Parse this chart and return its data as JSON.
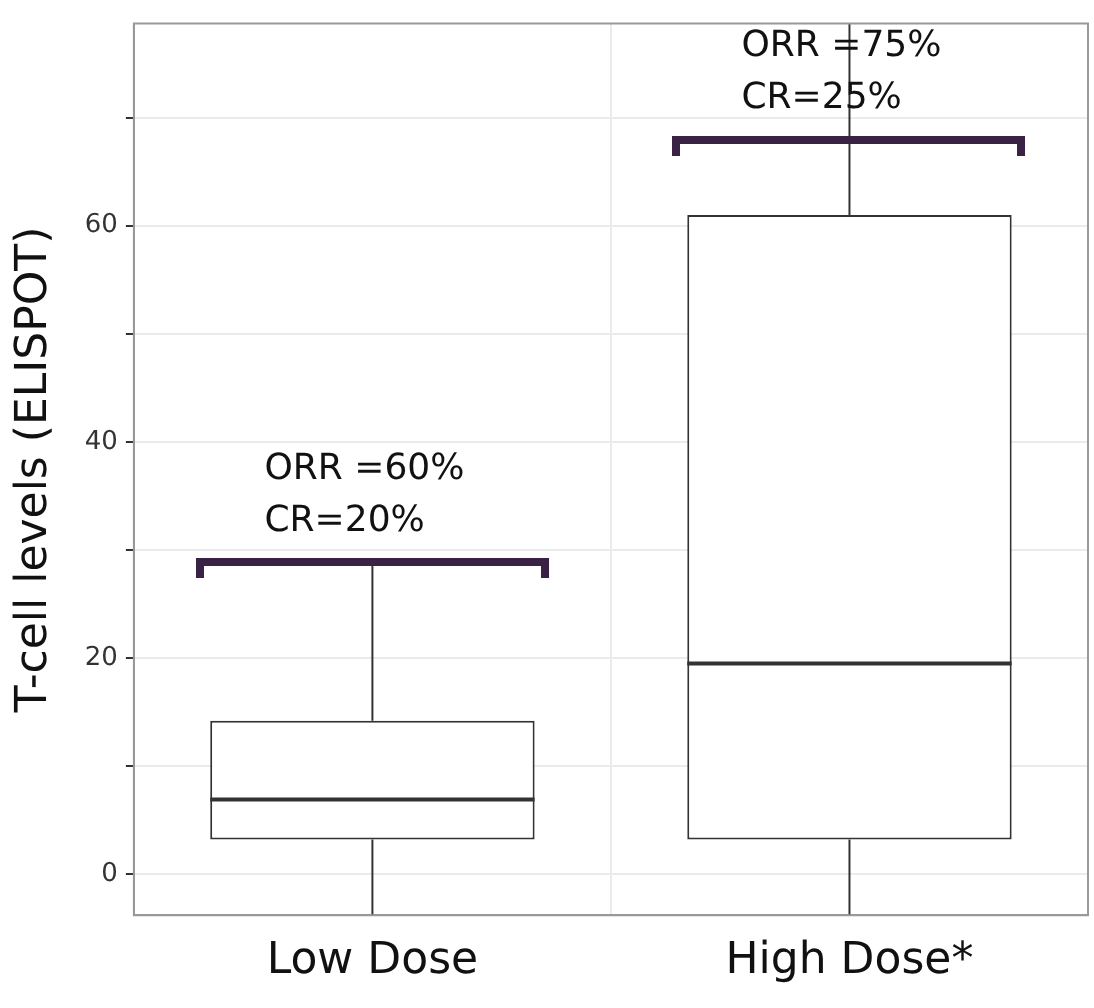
{
  "chart_data": {
    "type": "box",
    "categories": [
      "Low Dose",
      "High Dose*"
    ],
    "ylabel": "T-cell levels (ELISPOT)",
    "boxes": [
      {
        "low": -3.8,
        "q1": 3.2,
        "median": 6.9,
        "q3": 14.2,
        "high": 28.7
      },
      {
        "low": -3.8,
        "q1": 3.2,
        "median": 19.5,
        "q3": 61.0,
        "high": 78.7
      }
    ],
    "ylim": [
      -3.8,
      78.7
    ],
    "yticks": [
      0,
      {
        "value": 10,
        "label": null
      },
      20,
      {
        "value": 30,
        "label": null
      },
      40,
      {
        "value": 50,
        "label": null
      },
      60,
      {
        "value": 70,
        "label": null
      }
    ],
    "grid": true,
    "legend": false,
    "annotations": [
      {
        "text": "ORR =60%\nCR=20%",
        "x": "Low Dose",
        "y": 28.8
      },
      {
        "text": "ORR =75%\nCR=25%",
        "x": "High Dose*",
        "y": 67.9
      }
    ]
  }
}
